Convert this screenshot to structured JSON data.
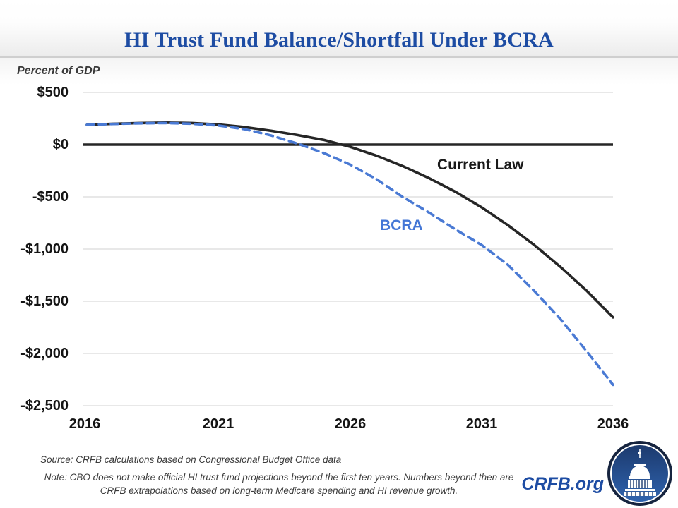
{
  "header": {
    "title": "HI Trust Fund Balance/Shortfall Under BCRA"
  },
  "chart_data": {
    "type": "line",
    "title": "HI Trust Fund Balance/Shortfall Under BCRA",
    "ylabel": "Percent of GDP",
    "xlabel": "",
    "x": [
      2016,
      2017,
      2018,
      2019,
      2020,
      2021,
      2022,
      2023,
      2024,
      2025,
      2026,
      2027,
      2028,
      2029,
      2030,
      2031,
      2032,
      2033,
      2034,
      2035,
      2036
    ],
    "x_tick_labels": [
      "2016",
      "2021",
      "2026",
      "2031",
      "2036"
    ],
    "y_tick_labels": [
      "$500",
      "$0",
      "-$500",
      "-$1,000",
      "-$1,500",
      "-$2,000",
      "-$2,500"
    ],
    "y_tick_values": [
      500,
      0,
      -500,
      -1000,
      -1500,
      -2000,
      -2500
    ],
    "ylim": [
      -2500,
      500
    ],
    "grid": true,
    "legend_position": "inline-annotations",
    "series": [
      {
        "name": "Current Law",
        "style": "solid",
        "color": "#262626",
        "values": [
          190,
          200,
          207,
          211,
          207,
          193,
          168,
          133,
          92,
          45,
          -20,
          -105,
          -205,
          -320,
          -450,
          -600,
          -770,
          -960,
          -1170,
          -1400,
          -1655
        ]
      },
      {
        "name": "BCRA",
        "style": "dashed",
        "color": "#4a7ad4",
        "values": [
          190,
          198,
          204,
          207,
          200,
          183,
          148,
          88,
          10,
          -80,
          -190,
          -330,
          -500,
          -650,
          -810,
          -960,
          -1150,
          -1400,
          -1670,
          -1980,
          -2300
        ]
      }
    ],
    "annotations": [
      {
        "text": "Current Law",
        "color": "#1a1a1a"
      },
      {
        "text": "BCRA",
        "color": "#4376d6"
      }
    ]
  },
  "footer": {
    "source": "Source: CRFB calculations based on Congressional Budget Office data",
    "note": "Note: CBO does not make official HI trust fund projections beyond the first ten years. Numbers beyond then are CRFB extrapolations based on long-term Medicare spending and HI revenue growth.",
    "brand": "CRFB.org"
  },
  "colors": {
    "title_blue": "#1d4ca3",
    "gridline": "#d9d9d9",
    "zero_axis": "#262626",
    "logo_ring": "#16243f",
    "logo_fill_top": "#1c3a6e",
    "logo_fill_bottom": "#2f63ae"
  }
}
